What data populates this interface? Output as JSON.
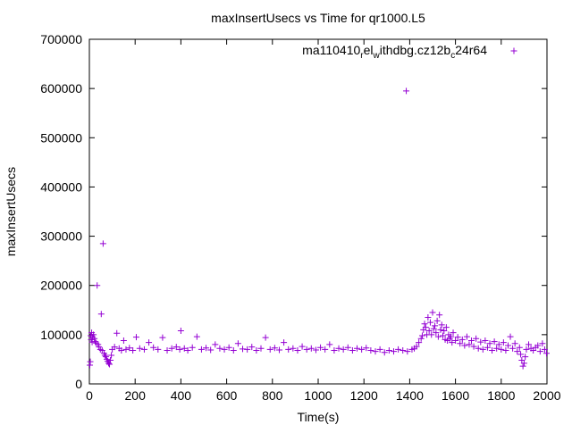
{
  "chart_data": {
    "type": "scatter",
    "title": "maxInsertUsecs vs Time for qr1000.L5",
    "xlabel": "Time(s)",
    "ylabel": "maxInsertUsecs",
    "xlim": [
      0,
      2000
    ],
    "ylim": [
      0,
      700000
    ],
    "x_ticks": [
      0,
      200,
      400,
      600,
      800,
      1000,
      1200,
      1400,
      1600,
      1800,
      2000
    ],
    "y_ticks": [
      0,
      100000,
      200000,
      300000,
      400000,
      500000,
      600000,
      700000
    ],
    "grid": false,
    "legend": {
      "position": "top-right",
      "label_parts": [
        "ma110410",
        "r",
        "el",
        "w",
        "ithdbg.cz12b",
        "c",
        "24r64"
      ],
      "marker": "+"
    },
    "series": [
      {
        "name": "ma110410_rel_withdbg.cz12b_c24r64",
        "color": "#9400d3",
        "marker": "+",
        "points": [
          [
            2,
            38000
          ],
          [
            4,
            45000
          ],
          [
            6,
            98000
          ],
          [
            8,
            90000
          ],
          [
            10,
            104000
          ],
          [
            12,
            85000
          ],
          [
            14,
            95000
          ],
          [
            18,
            100000
          ],
          [
            22,
            92000
          ],
          [
            26,
            86000
          ],
          [
            30,
            83000
          ],
          [
            34,
            200000
          ],
          [
            38,
            80000
          ],
          [
            42,
            75000
          ],
          [
            48,
            70000
          ],
          [
            52,
            142000
          ],
          [
            56,
            68000
          ],
          [
            60,
            285000
          ],
          [
            64,
            62000
          ],
          [
            68,
            58000
          ],
          [
            72,
            55000
          ],
          [
            76,
            50000
          ],
          [
            80,
            46000
          ],
          [
            84,
            42000
          ],
          [
            88,
            40000
          ],
          [
            92,
            48000
          ],
          [
            96,
            58000
          ],
          [
            100,
            70000
          ],
          [
            110,
            75000
          ],
          [
            120,
            103000
          ],
          [
            130,
            72000
          ],
          [
            140,
            68000
          ],
          [
            150,
            88000
          ],
          [
            160,
            70000
          ],
          [
            175,
            73000
          ],
          [
            190,
            68000
          ],
          [
            205,
            95000
          ],
          [
            220,
            72000
          ],
          [
            240,
            70000
          ],
          [
            260,
            84000
          ],
          [
            280,
            74000
          ],
          [
            300,
            70000
          ],
          [
            320,
            94000
          ],
          [
            340,
            68000
          ],
          [
            360,
            72000
          ],
          [
            380,
            75000
          ],
          [
            395,
            70000
          ],
          [
            400,
            108000
          ],
          [
            415,
            72000
          ],
          [
            430,
            68000
          ],
          [
            450,
            74000
          ],
          [
            470,
            96000
          ],
          [
            490,
            70000
          ],
          [
            510,
            73000
          ],
          [
            530,
            69000
          ],
          [
            550,
            80000
          ],
          [
            570,
            72000
          ],
          [
            590,
            70000
          ],
          [
            610,
            74000
          ],
          [
            630,
            68000
          ],
          [
            650,
            82000
          ],
          [
            670,
            71000
          ],
          [
            690,
            70000
          ],
          [
            710,
            75000
          ],
          [
            730,
            68000
          ],
          [
            750,
            72000
          ],
          [
            770,
            94000
          ],
          [
            790,
            70000
          ],
          [
            810,
            73000
          ],
          [
            830,
            69000
          ],
          [
            850,
            84000
          ],
          [
            870,
            70000
          ],
          [
            890,
            72000
          ],
          [
            910,
            68000
          ],
          [
            930,
            76000
          ],
          [
            950,
            70000
          ],
          [
            970,
            72000
          ],
          [
            990,
            69000
          ],
          [
            1010,
            74000
          ],
          [
            1030,
            70000
          ],
          [
            1050,
            80000
          ],
          [
            1070,
            68000
          ],
          [
            1090,
            72000
          ],
          [
            1110,
            70000
          ],
          [
            1130,
            74000
          ],
          [
            1150,
            68000
          ],
          [
            1170,
            72000
          ],
          [
            1190,
            70000
          ],
          [
            1210,
            73000
          ],
          [
            1230,
            68000
          ],
          [
            1250,
            66000
          ],
          [
            1270,
            70000
          ],
          [
            1290,
            64000
          ],
          [
            1310,
            68000
          ],
          [
            1330,
            66000
          ],
          [
            1350,
            70000
          ],
          [
            1370,
            68000
          ],
          [
            1385,
            595000
          ],
          [
            1390,
            66000
          ],
          [
            1410,
            70000
          ],
          [
            1420,
            72000
          ],
          [
            1430,
            76000
          ],
          [
            1440,
            84000
          ],
          [
            1450,
            92000
          ],
          [
            1455,
            98000
          ],
          [
            1460,
            110000
          ],
          [
            1465,
            122000
          ],
          [
            1470,
            115000
          ],
          [
            1475,
            100000
          ],
          [
            1480,
            135000
          ],
          [
            1485,
            108000
          ],
          [
            1490,
            125000
          ],
          [
            1495,
            100000
          ],
          [
            1500,
            145000
          ],
          [
            1505,
            112000
          ],
          [
            1510,
            118000
          ],
          [
            1515,
            104000
          ],
          [
            1520,
            128000
          ],
          [
            1525,
            96000
          ],
          [
            1530,
            140000
          ],
          [
            1535,
            110000
          ],
          [
            1540,
            120000
          ],
          [
            1545,
            98000
          ],
          [
            1550,
            108000
          ],
          [
            1555,
            90000
          ],
          [
            1560,
            115000
          ],
          [
            1565,
            88000
          ],
          [
            1570,
            100000
          ],
          [
            1575,
            92000
          ],
          [
            1580,
            96000
          ],
          [
            1585,
            84000
          ],
          [
            1590,
            104000
          ],
          [
            1600,
            88000
          ],
          [
            1610,
            95000
          ],
          [
            1620,
            82000
          ],
          [
            1630,
            90000
          ],
          [
            1640,
            78000
          ],
          [
            1650,
            96000
          ],
          [
            1660,
            80000
          ],
          [
            1670,
            88000
          ],
          [
            1680,
            76000
          ],
          [
            1690,
            92000
          ],
          [
            1700,
            72000
          ],
          [
            1710,
            85000
          ],
          [
            1720,
            70000
          ],
          [
            1730,
            88000
          ],
          [
            1740,
            74000
          ],
          [
            1750,
            82000
          ],
          [
            1760,
            68000
          ],
          [
            1770,
            86000
          ],
          [
            1780,
            72000
          ],
          [
            1790,
            80000
          ],
          [
            1800,
            70000
          ],
          [
            1810,
            84000
          ],
          [
            1820,
            68000
          ],
          [
            1830,
            78000
          ],
          [
            1840,
            96000
          ],
          [
            1850,
            72000
          ],
          [
            1860,
            82000
          ],
          [
            1870,
            66000
          ],
          [
            1880,
            74000
          ],
          [
            1885,
            60000
          ],
          [
            1890,
            48000
          ],
          [
            1895,
            36000
          ],
          [
            1900,
            42000
          ],
          [
            1905,
            55000
          ],
          [
            1910,
            70000
          ],
          [
            1920,
            80000
          ],
          [
            1930,
            72000
          ],
          [
            1940,
            68000
          ],
          [
            1950,
            74000
          ],
          [
            1960,
            78000
          ],
          [
            1970,
            66000
          ],
          [
            1980,
            82000
          ],
          [
            1990,
            70000
          ],
          [
            1998,
            62000
          ]
        ]
      }
    ]
  }
}
